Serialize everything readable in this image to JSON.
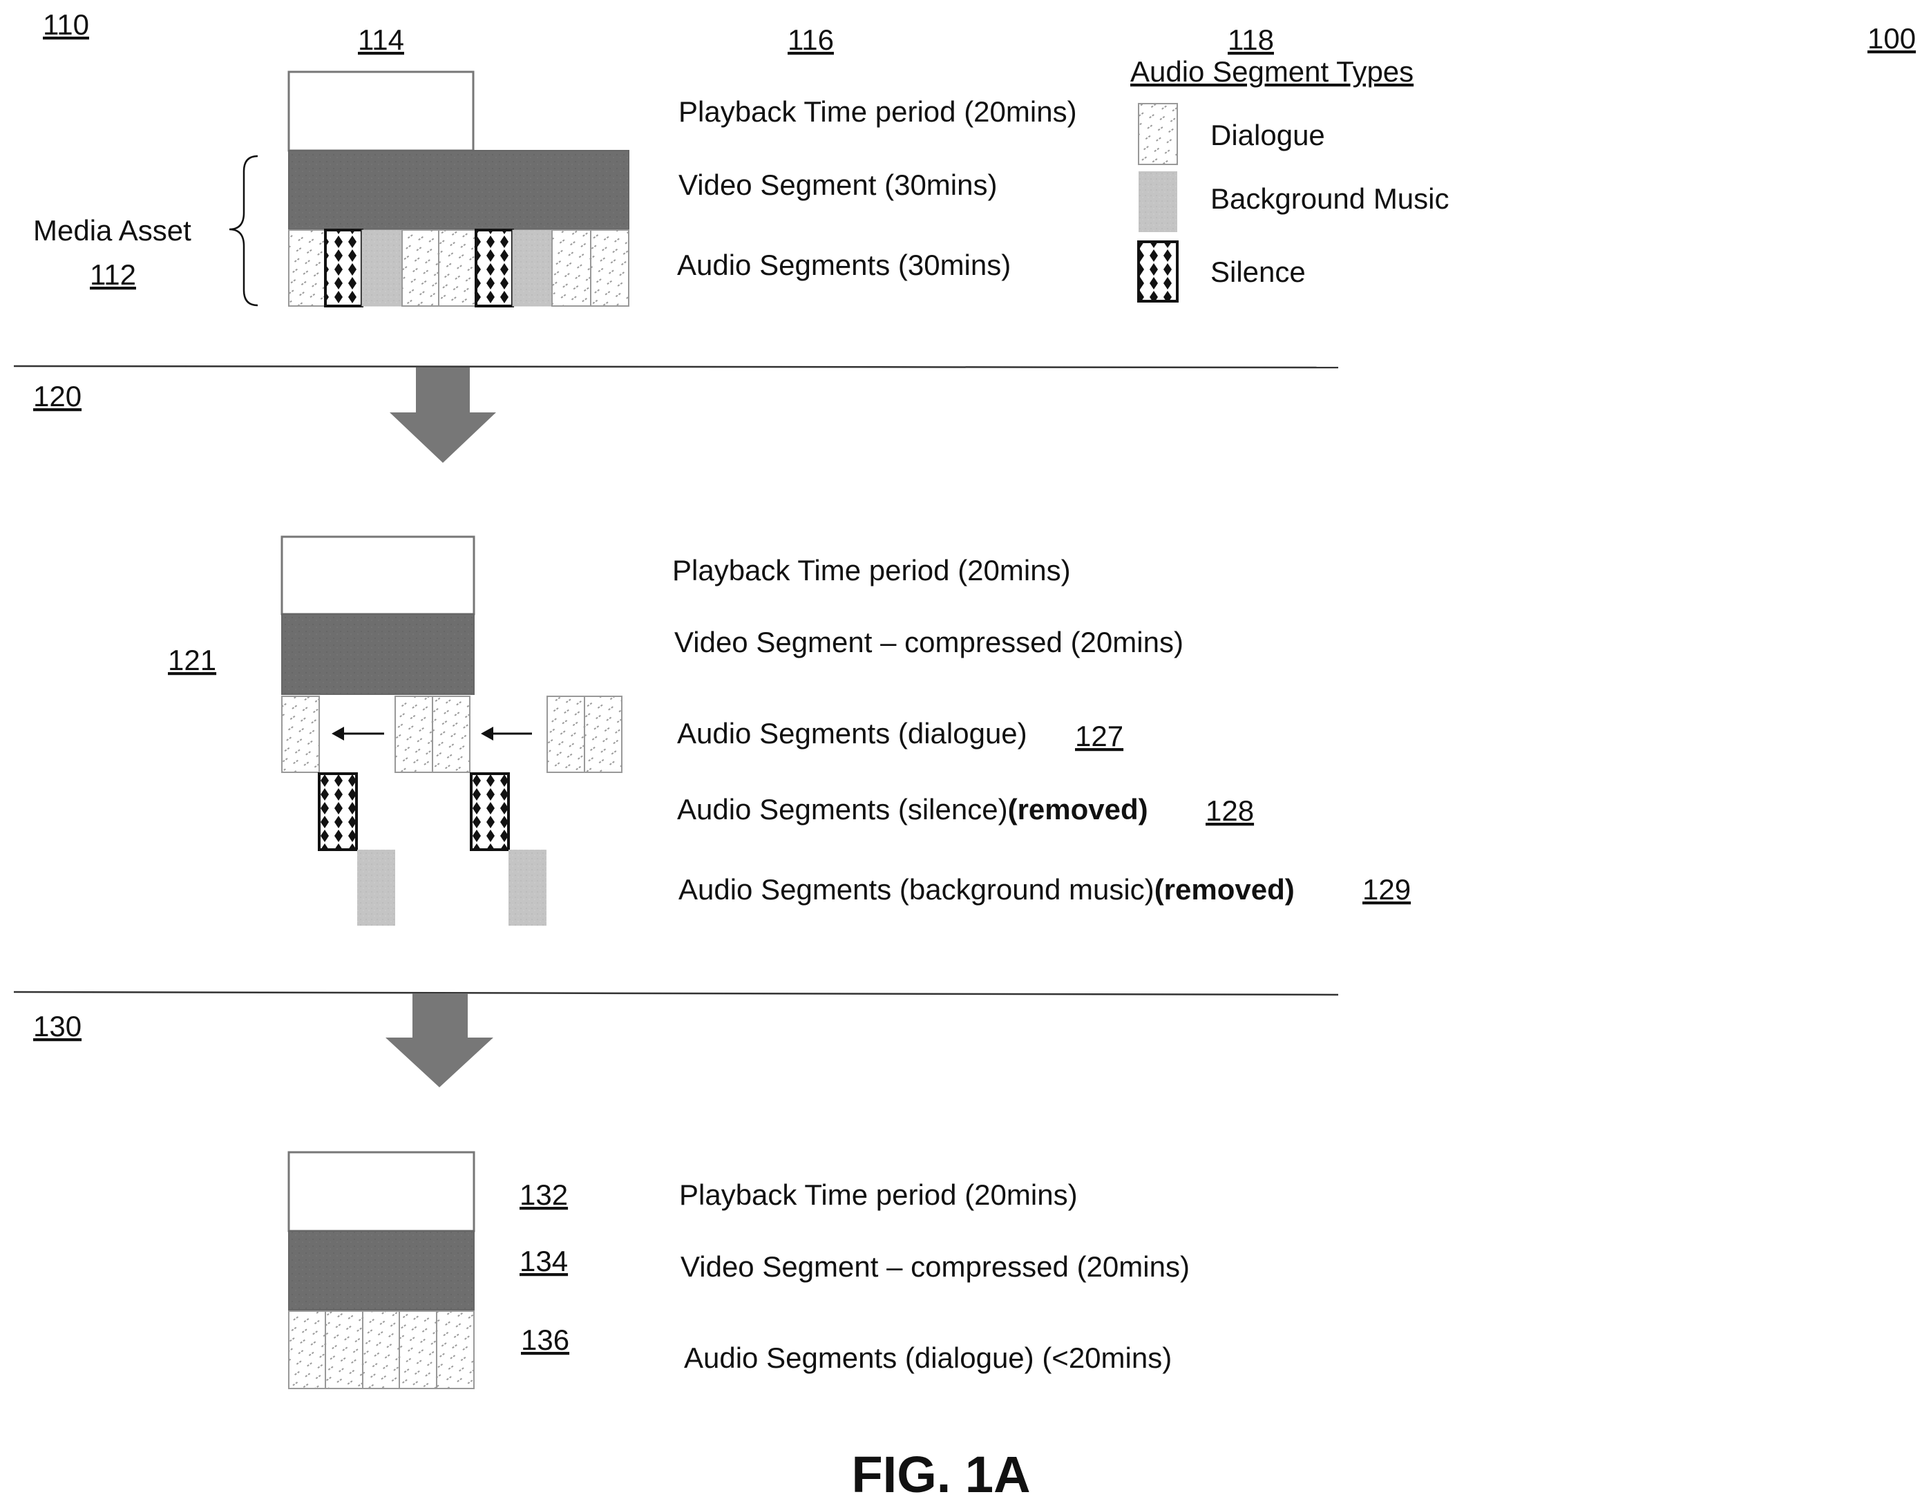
{
  "refs": {
    "r110": "110",
    "r114": "114",
    "r116": "116",
    "r118": "118",
    "r100": "100",
    "r112": "112",
    "r120": "120",
    "r121": "121",
    "r127": "127",
    "r128": "128",
    "r129": "129",
    "r130": "130",
    "r132": "132",
    "r134": "134",
    "r136": "136"
  },
  "legend": {
    "title": "Audio Segment Types",
    "dialogue": "Dialogue",
    "background_music": "Background Music",
    "silence": "Silence"
  },
  "section1": {
    "media_asset": "Media Asset",
    "playback": "Playback Time period (20mins)",
    "video": "Video Segment (30mins)",
    "audio": "Audio Segments (30mins)"
  },
  "section2": {
    "playback": "Playback Time period (20mins)",
    "video": "Video Segment – compressed (20mins)",
    "audio_dialogue": "Audio Segments (dialogue)",
    "audio_silence": "Audio Segments (silence)",
    "audio_silence_removed": "(removed)",
    "audio_bg": "Audio Segments (background music)",
    "audio_bg_removed": "(removed)"
  },
  "section3": {
    "playback": "Playback Time period (20mins)",
    "video": "Video Segment – compressed (20mins)",
    "audio": "Audio Segments (dialogue) (<20mins)"
  },
  "figure_label": "FIG. 1A",
  "colors": {
    "video_fill": "#6e6e6e",
    "arrow_fill": "#777777",
    "music_fill": "#c4c4c4",
    "dialogue_stroke": "#9a9a9a"
  }
}
